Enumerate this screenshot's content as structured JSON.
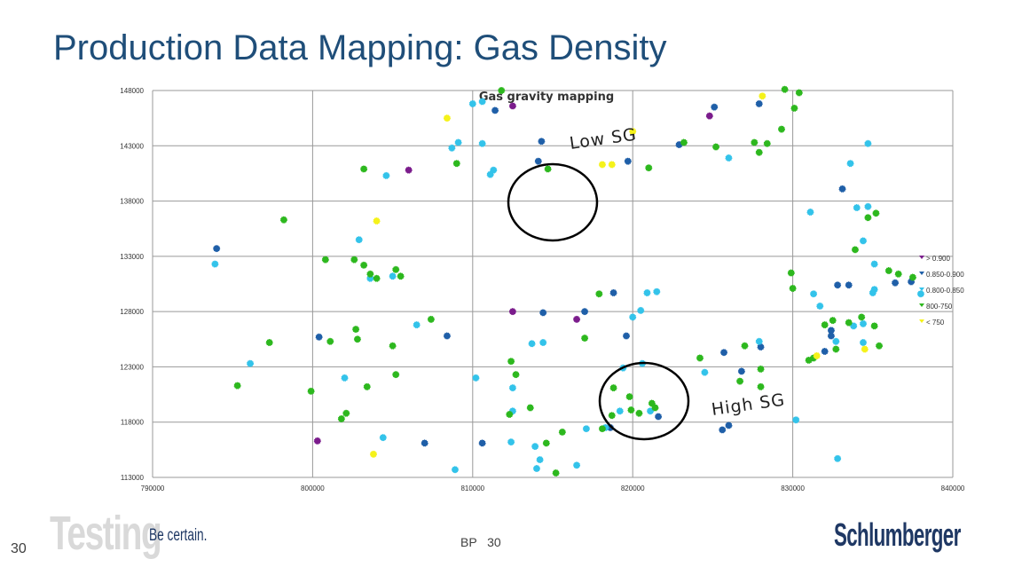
{
  "slide": {
    "title": "Production Data Mapping: Gas Density",
    "page_number": "30",
    "footer_center": "BP   30",
    "logo_testing": "Testing",
    "tagline": "Be certain.",
    "brand": "Schlumberger"
  },
  "colors": {
    "title": "#1f4e79",
    "purple": "#7b1c8c",
    "dark_blue": "#1f5fa8",
    "light_blue": "#33c3ea",
    "green": "#2db81e",
    "yellow": "#f5f21a",
    "grid": "#999999",
    "brand": "#1f3864"
  },
  "chart_data": {
    "type": "scatter",
    "title": "Gas gravity mapping",
    "xlabel": "",
    "ylabel": "",
    "xlim": [
      790000,
      840000
    ],
    "ylim": [
      113000,
      148000
    ],
    "x_ticks": [
      "790000",
      "800000",
      "810000",
      "820000",
      "830000",
      "840000"
    ],
    "y_ticks": [
      "113000",
      "118000",
      "123000",
      "128000",
      "133000",
      "138000",
      "143000",
      "148000"
    ],
    "grid": true,
    "legend_position": "right",
    "annotations": [
      "Low SG",
      "High SG"
    ],
    "series": [
      {
        "name": "> 0.900",
        "color": "#7b1c8c",
        "points": [
          [
            812500,
            146600
          ],
          [
            824800,
            145700
          ],
          [
            806000,
            140800
          ],
          [
            812500,
            128000
          ],
          [
            816500,
            127300
          ],
          [
            800300,
            116300
          ]
        ]
      },
      {
        "name": "0.850-0.900",
        "color": "#1f5fa8",
        "points": [
          [
            811400,
            146200
          ],
          [
            825100,
            146500
          ],
          [
            827900,
            146800
          ],
          [
            814300,
            143400
          ],
          [
            819700,
            141600
          ],
          [
            822900,
            143100
          ],
          [
            814100,
            141600
          ],
          [
            794000,
            133700
          ],
          [
            800400,
            125700
          ],
          [
            808400,
            125800
          ],
          [
            814400,
            127900
          ],
          [
            817000,
            128000
          ],
          [
            818800,
            129700
          ],
          [
            819600,
            125800
          ],
          [
            821600,
            118500
          ],
          [
            826800,
            122600
          ],
          [
            828000,
            124800
          ],
          [
            825700,
            124300
          ],
          [
            826000,
            117700
          ],
          [
            825600,
            117300
          ],
          [
            818600,
            117500
          ],
          [
            833100,
            139100
          ],
          [
            832400,
            126300
          ],
          [
            832800,
            130400
          ],
          [
            833500,
            130400
          ],
          [
            836400,
            130600
          ],
          [
            837400,
            130700
          ],
          [
            832000,
            124400
          ],
          [
            832400,
            125800
          ],
          [
            807000,
            116100
          ],
          [
            810600,
            116100
          ]
        ]
      },
      {
        "name": "0.800-0.850",
        "color": "#33c3ea",
        "points": [
          [
            810000,
            146800
          ],
          [
            810600,
            147000
          ],
          [
            808700,
            142800
          ],
          [
            809100,
            143300
          ],
          [
            810600,
            143200
          ],
          [
            811300,
            140800
          ],
          [
            811100,
            140400
          ],
          [
            804600,
            140300
          ],
          [
            802900,
            134500
          ],
          [
            793900,
            132300
          ],
          [
            796100,
            123300
          ],
          [
            803600,
            131000
          ],
          [
            805000,
            131200
          ],
          [
            806500,
            126800
          ],
          [
            802000,
            122000
          ],
          [
            810200,
            122000
          ],
          [
            812500,
            121100
          ],
          [
            812500,
            119000
          ],
          [
            812400,
            116200
          ],
          [
            813900,
            115800
          ],
          [
            814200,
            114600
          ],
          [
            814000,
            113800
          ],
          [
            816500,
            114100
          ],
          [
            817100,
            117400
          ],
          [
            818300,
            117500
          ],
          [
            819200,
            119000
          ],
          [
            819400,
            122900
          ],
          [
            820000,
            127500
          ],
          [
            820600,
            123300
          ],
          [
            820500,
            128100
          ],
          [
            821100,
            119000
          ],
          [
            821500,
            129800
          ],
          [
            820900,
            129700
          ],
          [
            813700,
            125100
          ],
          [
            814400,
            125200
          ],
          [
            808900,
            113700
          ],
          [
            804400,
            116600
          ],
          [
            826000,
            141900
          ],
          [
            824500,
            122500
          ],
          [
            827900,
            125300
          ],
          [
            830200,
            118200
          ],
          [
            831100,
            137000
          ],
          [
            831300,
            129600
          ],
          [
            831700,
            128500
          ],
          [
            832700,
            125300
          ],
          [
            833800,
            126700
          ],
          [
            834000,
            137400
          ],
          [
            834400,
            126900
          ],
          [
            834400,
            125200
          ],
          [
            834400,
            134400
          ],
          [
            834700,
            143200
          ],
          [
            834700,
            137500
          ],
          [
            835100,
            132300
          ],
          [
            835100,
            130000
          ],
          [
            832800,
            114700
          ],
          [
            835000,
            129700
          ],
          [
            833600,
            141400
          ],
          [
            838000,
            129600
          ]
        ]
      },
      {
        "name": "800-750",
        "color": "#2db81e",
        "points": [
          [
            811800,
            148000
          ],
          [
            814700,
            140900
          ],
          [
            809000,
            141400
          ],
          [
            821000,
            141000
          ],
          [
            823200,
            143300
          ],
          [
            825200,
            142900
          ],
          [
            827600,
            143300
          ],
          [
            827900,
            142400
          ],
          [
            828400,
            143200
          ],
          [
            829500,
            148100
          ],
          [
            830400,
            147800
          ],
          [
            830100,
            146400
          ],
          [
            829300,
            144500
          ],
          [
            798200,
            136300
          ],
          [
            803200,
            140900
          ],
          [
            800800,
            132700
          ],
          [
            802600,
            132700
          ],
          [
            803200,
            132200
          ],
          [
            803600,
            131400
          ],
          [
            804000,
            131000
          ],
          [
            805200,
            131800
          ],
          [
            805500,
            131200
          ],
          [
            797300,
            125200
          ],
          [
            795300,
            121300
          ],
          [
            799900,
            120800
          ],
          [
            801100,
            125300
          ],
          [
            801800,
            118300
          ],
          [
            802100,
            118800
          ],
          [
            802700,
            126400
          ],
          [
            802800,
            125500
          ],
          [
            803400,
            121200
          ],
          [
            805000,
            124900
          ],
          [
            805200,
            122300
          ],
          [
            807400,
            127300
          ],
          [
            813600,
            119300
          ],
          [
            812400,
            123500
          ],
          [
            812300,
            118700
          ],
          [
            812700,
            122300
          ],
          [
            814600,
            116100
          ],
          [
            815200,
            113400
          ],
          [
            815600,
            117100
          ],
          [
            817000,
            125600
          ],
          [
            817900,
            129600
          ],
          [
            818100,
            117400
          ],
          [
            818700,
            118600
          ],
          [
            818800,
            121100
          ],
          [
            819800,
            120300
          ],
          [
            819900,
            119100
          ],
          [
            820400,
            118800
          ],
          [
            821200,
            119700
          ],
          [
            821400,
            119300
          ],
          [
            824200,
            123800
          ],
          [
            826700,
            121700
          ],
          [
            827000,
            124900
          ],
          [
            828000,
            122800
          ],
          [
            828000,
            121200
          ],
          [
            829900,
            131500
          ],
          [
            830000,
            130100
          ],
          [
            831000,
            123600
          ],
          [
            831300,
            123800
          ],
          [
            832000,
            126800
          ],
          [
            832500,
            127200
          ],
          [
            832700,
            124600
          ],
          [
            833500,
            127000
          ],
          [
            834300,
            127500
          ],
          [
            834700,
            136500
          ],
          [
            835400,
            124900
          ],
          [
            835100,
            126700
          ],
          [
            833900,
            133600
          ],
          [
            835200,
            136900
          ],
          [
            836000,
            131700
          ],
          [
            836600,
            131400
          ],
          [
            837500,
            131100
          ]
        ]
      },
      {
        "name": "< 750",
        "color": "#f5f21a",
        "points": [
          [
            808400,
            145500
          ],
          [
            804000,
            136200
          ],
          [
            803800,
            115100
          ],
          [
            818100,
            141300
          ],
          [
            818700,
            141300
          ],
          [
            820000,
            144300
          ],
          [
            828100,
            147500
          ],
          [
            831500,
            124000
          ],
          [
            834500,
            124600
          ]
        ]
      }
    ]
  }
}
